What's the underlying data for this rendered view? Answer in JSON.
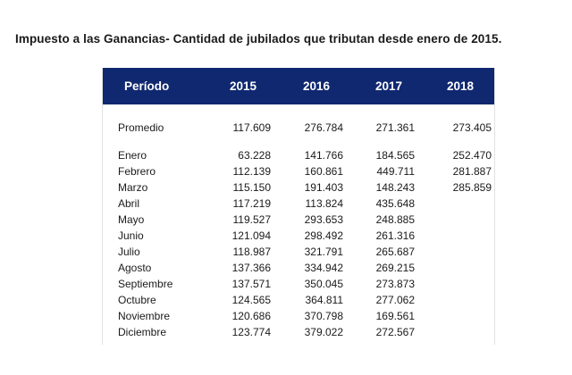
{
  "title": "Impuesto a las Ganancias- Cantidad de jubilados que tributan desde enero de 2015.",
  "table": {
    "header": [
      "Período",
      "2015",
      "2016",
      "2017",
      "2018"
    ],
    "rows": [
      {
        "label": "Promedio",
        "values": [
          "117.609",
          "276.784",
          "271.361",
          "273.405"
        ]
      },
      {
        "label": "Enero",
        "values": [
          "63.228",
          "141.766",
          "184.565",
          "252.470"
        ]
      },
      {
        "label": "Febrero",
        "values": [
          "112.139",
          "160.861",
          "449.711",
          "281.887"
        ]
      },
      {
        "label": "Marzo",
        "values": [
          "115.150",
          "191.403",
          "148.243",
          "285.859"
        ]
      },
      {
        "label": "Abril",
        "values": [
          "117.219",
          "113.824",
          "435.648",
          ""
        ]
      },
      {
        "label": "Mayo",
        "values": [
          "119.527",
          "293.653",
          "248.885",
          ""
        ]
      },
      {
        "label": "Junio",
        "values": [
          "121.094",
          "298.492",
          "261.316",
          ""
        ]
      },
      {
        "label": "Julio",
        "values": [
          "118.987",
          "321.791",
          "265.687",
          ""
        ]
      },
      {
        "label": "Agosto",
        "values": [
          "137.366",
          "334.942",
          "269.215",
          ""
        ]
      },
      {
        "label": "Septiembre",
        "values": [
          "137.571",
          "350.045",
          "273.873",
          ""
        ]
      },
      {
        "label": "Octubre",
        "values": [
          "124.565",
          "364.811",
          "277.062",
          ""
        ]
      },
      {
        "label": "Noviembre",
        "values": [
          "120.686",
          "370.798",
          "169.561",
          ""
        ]
      },
      {
        "label": "Diciembre",
        "values": [
          "123.774",
          "379.022",
          "272.567",
          ""
        ]
      }
    ]
  },
  "colors": {
    "header_background": "#102870",
    "header_text": "#ffffff",
    "body_text": "#1a1a1a"
  }
}
